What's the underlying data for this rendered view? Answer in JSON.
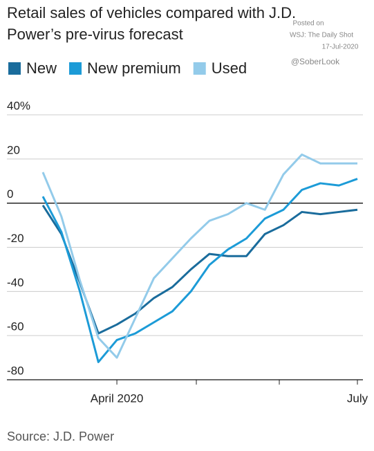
{
  "chart_data": {
    "type": "line",
    "title": [
      "Retail sales of vehicles compared with J.D.",
      "Power’s pre-virus forecast"
    ],
    "annotations": [
      "Posted on",
      "WSJ: The Daily Shot",
      "17-Jul-2020",
      "@SoberLook"
    ],
    "source": "Source: J.D. Power",
    "categories": [
      null,
      null,
      null,
      null,
      "April 2020",
      null,
      null,
      null,
      null,
      null,
      null,
      null,
      null,
      null,
      null,
      null,
      null,
      "July"
    ],
    "series": [
      {
        "name": "New",
        "color": "#1a6c9c",
        "values": [
          -1,
          -14,
          -36,
          -59,
          -55,
          -50,
          -43,
          -38,
          -30,
          -23,
          -24,
          -24,
          -14,
          -10,
          -4,
          -5,
          -4,
          -3
        ]
      },
      {
        "name": "New premium",
        "color": "#1c9bd7",
        "values": [
          3,
          -13,
          -40,
          -72,
          -62,
          -59,
          -54,
          -49,
          -40,
          -28,
          -21,
          -16,
          -7,
          -3,
          6,
          9,
          8,
          11
        ]
      },
      {
        "name": "Used",
        "color": "#93cbea",
        "values": [
          14,
          -6,
          -35,
          -61,
          -70,
          -52,
          -34,
          -25,
          -16,
          -8,
          -5,
          0,
          -3,
          13,
          22,
          18,
          18,
          18
        ]
      }
    ],
    "ylim": [
      -80,
      40
    ],
    "yticks": [
      {
        "value": 40,
        "label": "40%"
      },
      20,
      0,
      -20,
      -40,
      -60,
      -80
    ],
    "grid": true
  }
}
